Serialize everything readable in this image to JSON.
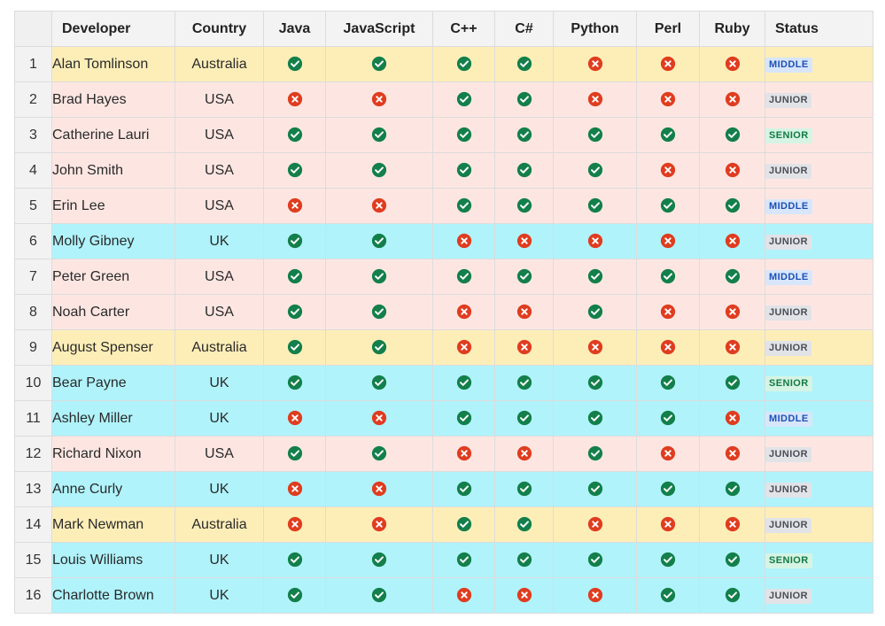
{
  "columns": {
    "index": "",
    "developer": "Developer",
    "country": "Country",
    "skills": [
      "Java",
      "JavaScript",
      "C++",
      "C#",
      "Python",
      "Perl",
      "Ruby"
    ],
    "status": "Status"
  },
  "colors": {
    "australia_row": "#fdeeb8",
    "usa_row": "#fde6e2",
    "uk_row": "#b0f3fb",
    "check": "#137f4a",
    "cross": "#e03c1f"
  },
  "icons": {
    "yes": "check-circle-icon",
    "no": "cross-circle-icon"
  },
  "rows": [
    {
      "idx": "1",
      "developer": "Alan Tomlinson",
      "country": "Australia",
      "skills": [
        true,
        true,
        true,
        true,
        false,
        false,
        false
      ],
      "status": "MIDDLE"
    },
    {
      "idx": "2",
      "developer": "Brad Hayes",
      "country": "USA",
      "skills": [
        false,
        false,
        true,
        true,
        false,
        false,
        false
      ],
      "status": "JUNIOR"
    },
    {
      "idx": "3",
      "developer": "Catherine Lauri",
      "country": "USA",
      "skills": [
        true,
        true,
        true,
        true,
        true,
        true,
        true
      ],
      "status": "SENIOR"
    },
    {
      "idx": "4",
      "developer": "John Smith",
      "country": "USA",
      "skills": [
        true,
        true,
        true,
        true,
        true,
        false,
        false
      ],
      "status": "JUNIOR"
    },
    {
      "idx": "5",
      "developer": "Erin Lee",
      "country": "USA",
      "skills": [
        false,
        false,
        true,
        true,
        true,
        true,
        true
      ],
      "status": "MIDDLE"
    },
    {
      "idx": "6",
      "developer": "Molly Gibney",
      "country": "UK",
      "skills": [
        true,
        true,
        false,
        false,
        false,
        false,
        false
      ],
      "status": "JUNIOR"
    },
    {
      "idx": "7",
      "developer": "Peter Green",
      "country": "USA",
      "skills": [
        true,
        true,
        true,
        true,
        true,
        true,
        true
      ],
      "status": "MIDDLE"
    },
    {
      "idx": "8",
      "developer": "Noah Carter",
      "country": "USA",
      "skills": [
        true,
        true,
        false,
        false,
        true,
        false,
        false
      ],
      "status": "JUNIOR"
    },
    {
      "idx": "9",
      "developer": "August Spenser",
      "country": "Australia",
      "skills": [
        true,
        true,
        false,
        false,
        false,
        false,
        false
      ],
      "status": "JUNIOR"
    },
    {
      "idx": "10",
      "developer": "Bear Payne",
      "country": "UK",
      "skills": [
        true,
        true,
        true,
        true,
        true,
        true,
        true
      ],
      "status": "SENIOR"
    },
    {
      "idx": "11",
      "developer": "Ashley Miller",
      "country": "UK",
      "skills": [
        false,
        false,
        true,
        true,
        true,
        true,
        false
      ],
      "status": "MIDDLE"
    },
    {
      "idx": "12",
      "developer": "Richard Nixon",
      "country": "USA",
      "skills": [
        true,
        true,
        false,
        false,
        true,
        false,
        false
      ],
      "status": "JUNIOR"
    },
    {
      "idx": "13",
      "developer": "Anne Curly",
      "country": "UK",
      "skills": [
        false,
        false,
        true,
        true,
        true,
        true,
        true
      ],
      "status": "JUNIOR"
    },
    {
      "idx": "14",
      "developer": "Mark Newman",
      "country": "Australia",
      "skills": [
        false,
        false,
        true,
        true,
        false,
        false,
        false
      ],
      "status": "JUNIOR"
    },
    {
      "idx": "15",
      "developer": "Louis Williams",
      "country": "UK",
      "skills": [
        true,
        true,
        true,
        true,
        true,
        true,
        true
      ],
      "status": "SENIOR"
    },
    {
      "idx": "16",
      "developer": "Charlotte Brown",
      "country": "UK",
      "skills": [
        true,
        true,
        false,
        false,
        false,
        true,
        true
      ],
      "status": "JUNIOR"
    }
  ]
}
